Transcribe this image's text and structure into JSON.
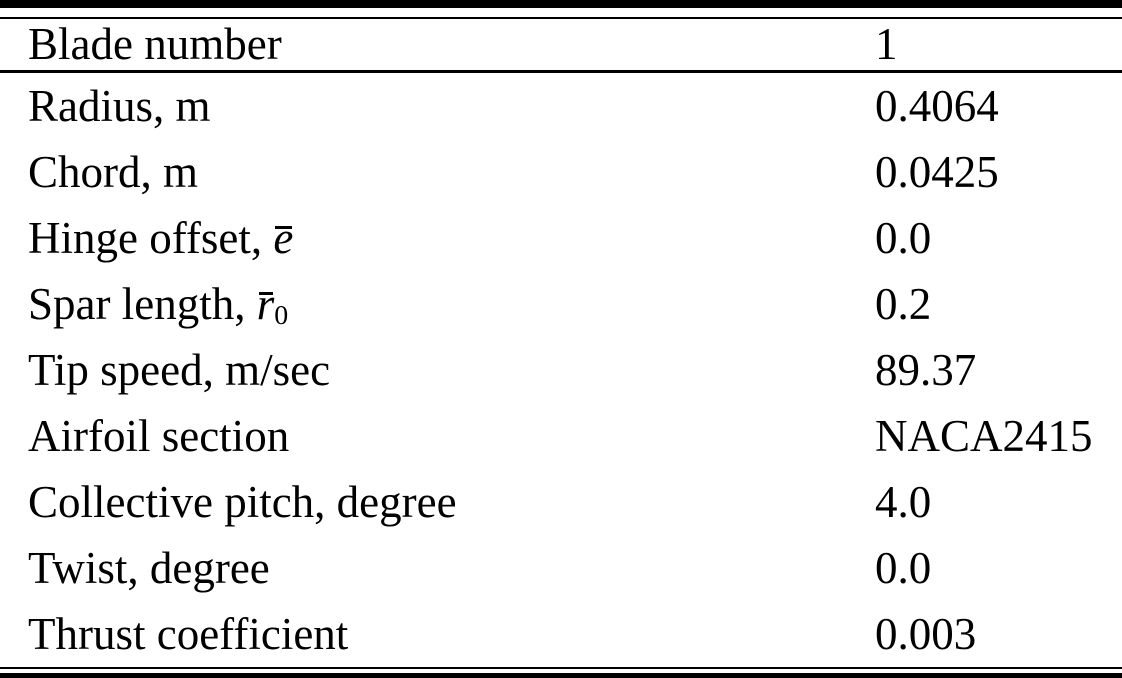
{
  "colors": {
    "text": "#000000",
    "background": "#ffffff",
    "rule": "#000000"
  },
  "table": {
    "header": {
      "label": "Blade number",
      "value": "1"
    },
    "rows": [
      {
        "label": "Radius, m",
        "sym": "",
        "sub": "",
        "value": "0.4064"
      },
      {
        "label": "Chord, m",
        "sym": "",
        "sub": "",
        "value": "0.0425"
      },
      {
        "label": "Hinge offset, ",
        "sym": "e",
        "sub": "",
        "value": "0.0"
      },
      {
        "label": "Spar length, ",
        "sym": "r",
        "sub": "0",
        "value": "0.2"
      },
      {
        "label": "Tip speed, m/sec",
        "sym": "",
        "sub": "",
        "value": "89.37"
      },
      {
        "label": "Airfoil section",
        "sym": "",
        "sub": "",
        "value": "NACA2415"
      },
      {
        "label": "Collective pitch, degree",
        "sym": "",
        "sub": "",
        "value": "4.0"
      },
      {
        "label": "Twist, degree",
        "sym": "",
        "sub": "",
        "value": "0.0"
      },
      {
        "label": "Thrust coefficient",
        "sym": "",
        "sub": "",
        "value": "0.003"
      }
    ]
  }
}
